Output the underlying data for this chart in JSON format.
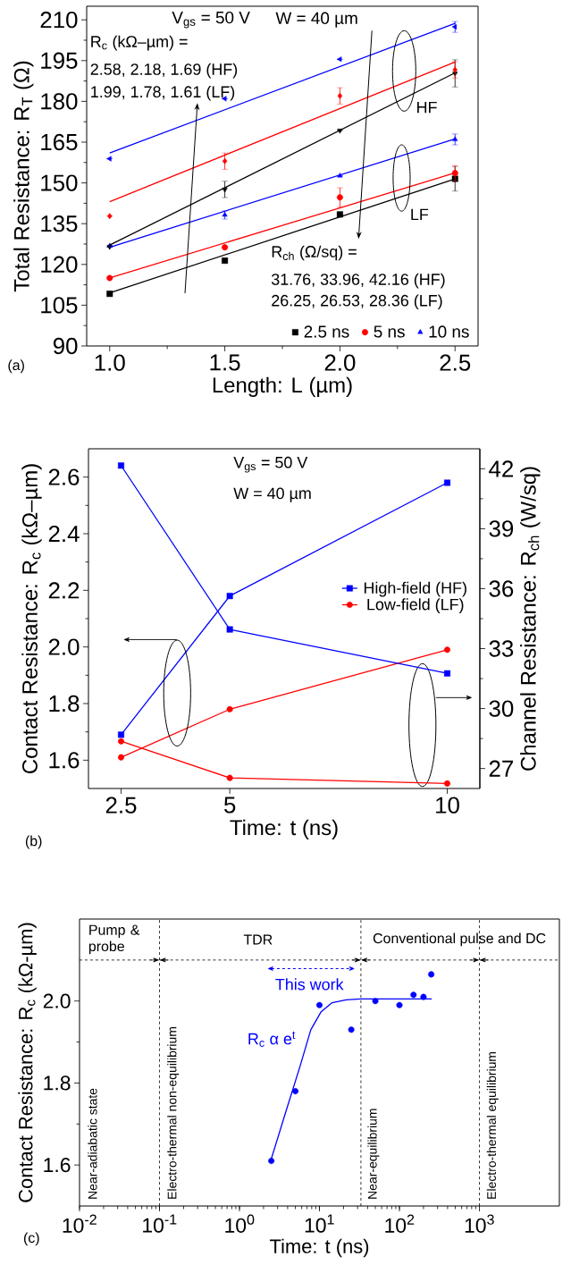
{
  "chart_data": [
    {
      "type": "scatter",
      "xlabel": "Length: L (µm)",
      "ylabel": "Total Resistance: R$_{T}$ (Ω)",
      "x": [
        1.0,
        1.5,
        2.0,
        2.5
      ],
      "xlim": [
        0.9,
        2.6
      ],
      "ylim": [
        90,
        215
      ],
      "xticks": [
        {
          "value": 1,
          "label": "1.0"
        },
        1.5,
        {
          "value": 2,
          "label": "2.0"
        },
        2.5
      ],
      "yticks": [
        90,
        105,
        120,
        135,
        150,
        165,
        180,
        195,
        210
      ],
      "legend": "bottom right",
      "annotations": [
        "V$_{gs}$ = 50 V",
        "W = 40 µm",
        "R$_{c}$ (kΩ–µm) =",
        "2.58, 2.18, 1.69 (HF)",
        "1.99, 1.78, 1.61 (LF)",
        "HF",
        "LF",
        "R$_{ch}$ (Ω/sq) =",
        "31.76, 33.96, 42.16 (HF)",
        "26.25, 26.53, 28.36 (LF)",
        "(a)"
      ],
      "series": [
        {
          "name": "2.5 ns",
          "color": "#000000",
          "marker": "square",
          "values": [
            109.2,
            121.4,
            138.4,
            151.5
          ],
          "errors": [
            null,
            null,
            null,
            4.5
          ]
        },
        {
          "name": "5 ns",
          "color": "#ff0000",
          "marker": "circle",
          "values": [
            115.0,
            126.3,
            144.7,
            153.6
          ],
          "errors": [
            null,
            null,
            3.5,
            2.8
          ]
        },
        {
          "name": "10 ns",
          "color": "#0000ff",
          "marker": "triangle",
          "values": [
            126.8,
            138.2,
            152.6,
            166.0
          ],
          "errors": [
            null,
            1.5,
            null,
            2
          ]
        },
        {
          "color": "#000000",
          "marker": "triangle-down",
          "values": [
            126.5,
            147.6,
            169.3,
            190.3
          ],
          "errors": [
            null,
            3,
            null,
            5
          ]
        },
        {
          "color": "#ff0000",
          "marker": "diamond",
          "values": [
            137.8,
            158.0,
            182.0,
            191.6
          ],
          "errors": [
            null,
            3,
            3,
            3
          ]
        },
        {
          "color": "#0000ff",
          "marker": "triangle-left",
          "values": [
            158.9,
            181.0,
            195.5,
            207.4
          ],
          "errors": [
            null,
            null,
            null,
            2
          ]
        },
        {
          "type": "line",
          "color": "#000000",
          "x": [
            1.0,
            2.5
          ],
          "values": [
            109.5,
            151.5
          ]
        },
        {
          "type": "line",
          "color": "#ff0000",
          "x": [
            1.0,
            2.5
          ],
          "values": [
            115.0,
            153.7
          ]
        },
        {
          "type": "line",
          "color": "#0000ff",
          "x": [
            1.0,
            2.5
          ],
          "values": [
            126.3,
            166.2
          ]
        },
        {
          "type": "line",
          "color": "#000000",
          "x": [
            1.0,
            2.5
          ],
          "values": [
            127.1,
            190.5
          ]
        },
        {
          "type": "line",
          "color": "#ff0000",
          "x": [
            1.0,
            2.5
          ],
          "values": [
            143.1,
            194.5
          ]
        },
        {
          "type": "line",
          "color": "#0000ff",
          "x": [
            1.0,
            2.5
          ],
          "values": [
            161.0,
            208.7
          ]
        }
      ]
    },
    {
      "type": "line",
      "xlabel": "Time: t (ns)",
      "ylabel": "Contact Resistance: R$_{c}$ (kΩ–µm)",
      "y2label": "Channel Resistance: R$_{ch}$ (W/sq)",
      "x": [
        2.5,
        5,
        10
      ],
      "xlim": [
        1.75,
        10.75
      ],
      "xticks": [
        2.5,
        5,
        10
      ],
      "ylim": [
        1.5,
        2.7
      ],
      "yticks": [
        1.6,
        1.8,
        {
          "value": 2,
          "label": "2.0"
        },
        2.2,
        2.4,
        2.6
      ],
      "y2lim": [
        26,
        43
      ],
      "y2ticks": [
        27,
        30,
        33,
        36,
        39,
        42
      ],
      "legend": "right",
      "annotations": [
        "V$_{gs}$ = 50 V",
        "W = 40 µm",
        "(b)"
      ],
      "series": [
        {
          "name": "High-field (HF)",
          "color": "#0000ff",
          "marker": "square",
          "values": [
            1.69,
            2.18,
            2.58
          ]
        },
        {
          "name": "Low-field (LF)",
          "color": "#ff0000",
          "marker": "circle",
          "values": [
            1.61,
            1.78,
            1.99
          ]
        },
        {
          "color": "#0000ff",
          "marker": "square",
          "axis": "y2",
          "values": [
            42.16,
            33.96,
            31.76
          ]
        },
        {
          "color": "#ff0000",
          "marker": "circle",
          "axis": "y2",
          "values": [
            28.36,
            26.53,
            26.25
          ]
        }
      ]
    },
    {
      "type": "scatter",
      "log": "x",
      "xlabel": "Time: t (ns)",
      "ylabel": "Contact Resistance: R$_{c}$ (kΩ-µm)",
      "xlim": [
        0.01,
        10000
      ],
      "ylim": [
        1.5,
        2.2
      ],
      "xticks": [
        {
          "value": 0.01,
          "label": "10$^{-2}$"
        },
        {
          "value": 0.1,
          "label": "10$^{-1}$"
        },
        {
          "value": 1,
          "label": "10$^{0}$"
        },
        {
          "value": 10,
          "label": "10$^{1}$"
        },
        {
          "value": 100,
          "label": "10$^{2}$"
        },
        {
          "value": 1000,
          "label": "10$^{3}$"
        }
      ],
      "yticks": [
        1.6,
        1.8,
        {
          "value": 2,
          "label": "2.0"
        }
      ],
      "x": [
        2.5,
        5,
        10,
        25,
        50,
        100,
        150,
        200,
        250
      ],
      "ref_lines": [
        {
          "axis": "x",
          "value": 0.1,
          "color": "#000000",
          "line_style": "dashed"
        },
        {
          "axis": "x",
          "value": 33,
          "color": "#000000",
          "line_style": "dashed"
        },
        {
          "axis": "x",
          "value": 1000,
          "color": "#000000",
          "line_style": "dashed"
        },
        {
          "axis": "y",
          "value": 2.1,
          "color": "#000000",
          "line_style": "dashed"
        }
      ],
      "annotations": [
        "Pump & probe",
        "TDR",
        "Conventional pulse and DC",
        "This work",
        "R$_{c}$ α e$^{t}$",
        "Near-adiabatic state",
        "Electro-thermal non-equilibrium",
        "Near-equilibrium",
        "Electro-thermal equilibrium",
        "(c)"
      ],
      "series": [
        {
          "color": "#0000ff",
          "marker": "circle",
          "values": [
            1.61,
            1.78,
            1.99,
            1.93,
            2.0,
            1.99,
            2.015,
            2.01,
            2.065
          ]
        },
        {
          "type": "line",
          "color": "#0000ff",
          "x": [
            2.5,
            3.8,
            5.7,
            7.8,
            10.5,
            14.4,
            21.7,
            33,
            254
          ],
          "values": [
            1.615,
            1.73,
            1.84,
            1.93,
            1.974,
            1.996,
            2.003,
            2.005,
            2.005
          ]
        }
      ]
    }
  ]
}
